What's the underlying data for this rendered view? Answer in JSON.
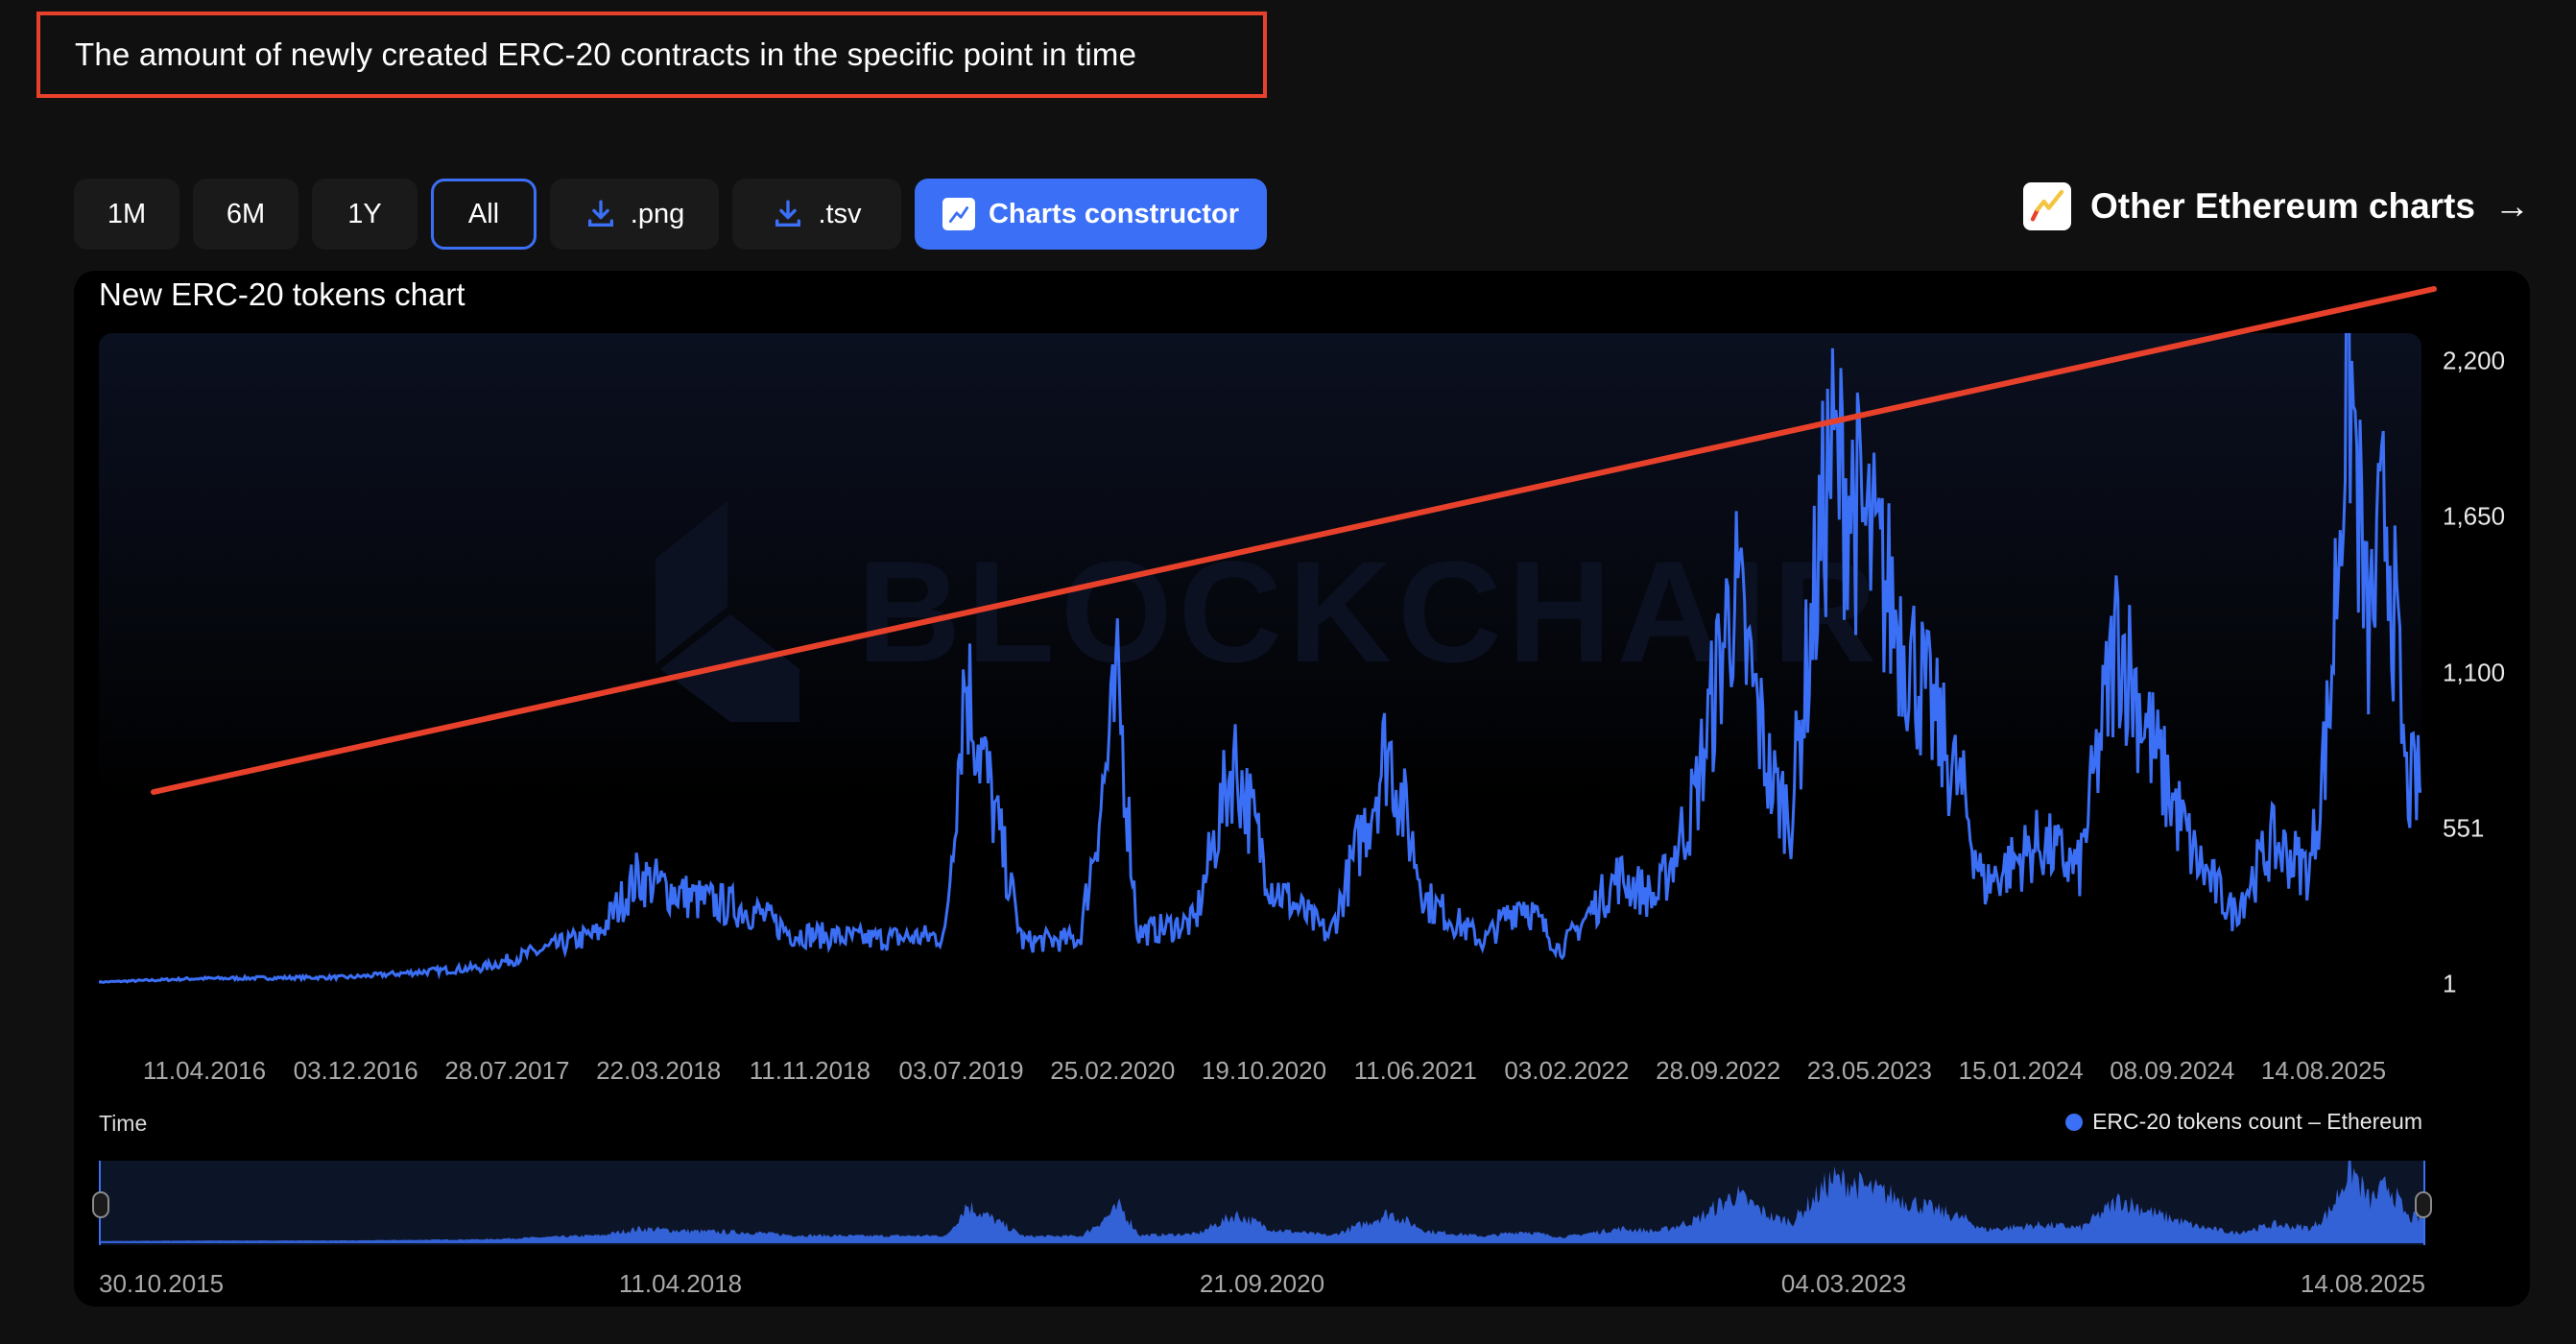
{
  "annotation": {
    "text": "The amount of newly created ERC-20 contracts in the specific point in time",
    "border_color": "#e8412b"
  },
  "toolbar": {
    "ranges": [
      {
        "label": "1M",
        "active": false
      },
      {
        "label": "6M",
        "active": false
      },
      {
        "label": "1Y",
        "active": false
      },
      {
        "label": "All",
        "active": true
      }
    ],
    "download_png_label": ".png",
    "download_tsv_label": ".tsv",
    "download_icon": "download-icon",
    "charts_constructor_label": "Charts constructor",
    "charts_constructor_icon": "chart-line-icon",
    "accent_color": "#3b6ff5"
  },
  "other_charts": {
    "label": "Other Ethereum charts",
    "arrow": "→",
    "icon": "trend-chart-icon"
  },
  "chart_panel": {
    "title": "New ERC-20 tokens chart",
    "watermark": "BLOCKCHAIR",
    "time_label": "Time",
    "legend_label": "ERC-20 tokens count – Ethereum",
    "series_color": "#3b6ff5"
  },
  "chart_data": {
    "type": "area",
    "title": "New ERC-20 tokens chart",
    "xlabel": "Time",
    "ylabel": "",
    "ylim": [
      1,
      2300
    ],
    "y_ticks": [
      "2,200",
      "1,650",
      "1,100",
      "551",
      "1"
    ],
    "y_tick_values": [
      2200,
      1650,
      1100,
      551,
      1
    ],
    "x_ticks": [
      "11.04.2016",
      "03.12.2016",
      "28.07.2017",
      "22.03.2018",
      "11.11.2018",
      "03.07.2019",
      "25.02.2020",
      "19.10.2020",
      "11.06.2021",
      "03.02.2022",
      "28.09.2022",
      "23.05.2023",
      "15.01.2024",
      "08.09.2024",
      "14.08.2025"
    ],
    "navigator_ticks": [
      "30.10.2015",
      "11.04.2018",
      "21.09.2020",
      "04.03.2023",
      "14.08.2025"
    ],
    "legend": [
      "ERC-20 tokens count – Ethereum"
    ],
    "grid": false,
    "series": [
      {
        "name": "ERC-20 tokens count – Ethereum",
        "x": [
          "2015-10",
          "2016-04",
          "2016-12",
          "2017-07",
          "2017-10",
          "2018-01",
          "2018-03",
          "2018-06",
          "2018-09",
          "2018-11",
          "2019-03",
          "2019-07",
          "2019-08",
          "2019-11",
          "2020-02",
          "2020-04",
          "2020-05",
          "2020-08",
          "2020-10",
          "2020-12",
          "2021-03",
          "2021-05",
          "2021-06",
          "2021-08",
          "2021-11",
          "2022-01",
          "2022-03",
          "2022-06",
          "2022-08",
          "2022-10",
          "2022-12",
          "2023-02",
          "2023-03",
          "2023-05",
          "2023-06",
          "2023-09",
          "2023-12",
          "2024-01",
          "2024-04",
          "2024-06",
          "2024-08",
          "2024-10",
          "2024-12",
          "2025-02",
          "2025-04",
          "2025-06",
          "2025-07",
          "2025-08",
          "2025-09",
          "2025-10",
          "2025-11"
        ],
        "values": [
          5,
          20,
          25,
          60,
          120,
          180,
          380,
          300,
          260,
          180,
          160,
          170,
          1100,
          150,
          160,
          1040,
          180,
          220,
          800,
          350,
          170,
          600,
          850,
          300,
          150,
          300,
          120,
          380,
          300,
          650,
          1400,
          700,
          600,
          1850,
          1750,
          1200,
          650,
          350,
          500,
          400,
          1250,
          800,
          450,
          250,
          500,
          400,
          950,
          2250,
          1200,
          1700,
          700
        ]
      }
    ]
  }
}
